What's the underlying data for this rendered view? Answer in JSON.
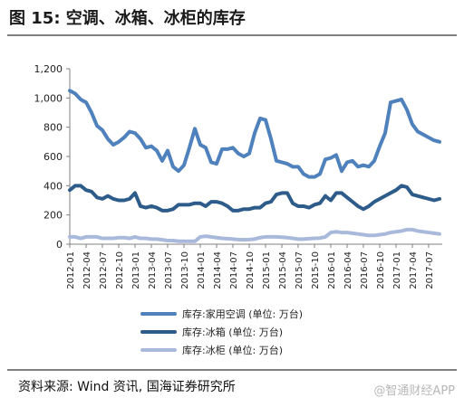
{
  "title": "图 15:  空调、冰箱、冰柜的库存",
  "source": "资料来源:  Wind 资讯, 国海证券研究所",
  "watermark": "@智通财经APP",
  "colors": {
    "series_ac": "#4f81bd",
    "series_fridge": "#2e5c8a",
    "series_freezer": "#a9b9dc",
    "axis": "#808080",
    "rule": "#7f7f7f"
  },
  "chart_data": {
    "type": "line",
    "ylim": [
      0,
      1200
    ],
    "yticks": [
      0,
      200,
      400,
      600,
      800,
      1000,
      1200
    ],
    "ytick_labels": [
      "0",
      "200",
      "400",
      "600",
      "800",
      "1,000",
      "1,200"
    ],
    "x": [
      "2012-01",
      "2012-02",
      "2012-03",
      "2012-04",
      "2012-05",
      "2012-06",
      "2012-07",
      "2012-08",
      "2012-09",
      "2012-10",
      "2012-11",
      "2012-12",
      "2013-01",
      "2013-02",
      "2013-03",
      "2013-04",
      "2013-05",
      "2013-06",
      "2013-07",
      "2013-08",
      "2013-09",
      "2013-10",
      "2013-11",
      "2013-12",
      "2014-01",
      "2014-02",
      "2014-03",
      "2014-04",
      "2014-05",
      "2014-06",
      "2014-07",
      "2014-08",
      "2014-09",
      "2014-10",
      "2014-11",
      "2014-12",
      "2015-01",
      "2015-02",
      "2015-03",
      "2015-04",
      "2015-05",
      "2015-06",
      "2015-07",
      "2015-08",
      "2015-09",
      "2015-10",
      "2015-11",
      "2015-12",
      "2016-01",
      "2016-02",
      "2016-03",
      "2016-04",
      "2016-05",
      "2016-06",
      "2016-07",
      "2016-08",
      "2016-09",
      "2016-10",
      "2016-11",
      "2016-12",
      "2017-01",
      "2017-02",
      "2017-03",
      "2017-04",
      "2017-05",
      "2017-06",
      "2017-07",
      "2017-08",
      "2017-09"
    ],
    "xtick_labels": [
      "2012-01",
      "2012-04",
      "2012-07",
      "2012-10",
      "2013-01",
      "2013-04",
      "2013-07",
      "2013-10",
      "2014-01",
      "2014-04",
      "2014-07",
      "2014-10",
      "2015-01",
      "2015-04",
      "2015-07",
      "2015-10",
      "2016-01",
      "2016-04",
      "2016-07",
      "2016-10",
      "2017-01",
      "2017-04",
      "2017-07"
    ],
    "legend_position": "bottom",
    "grid": false,
    "series": [
      {
        "name": "库存:家用空调 (单位: 万台)",
        "values": [
          1050,
          1030,
          990,
          970,
          900,
          810,
          780,
          720,
          680,
          700,
          730,
          770,
          760,
          720,
          660,
          670,
          640,
          570,
          640,
          530,
          500,
          540,
          660,
          790,
          680,
          660,
          560,
          550,
          650,
          650,
          660,
          620,
          600,
          620,
          760,
          860,
          850,
          720,
          570,
          560,
          550,
          530,
          530,
          480,
          460,
          460,
          480,
          580,
          590,
          610,
          500,
          560,
          570,
          530,
          540,
          530,
          570,
          670,
          760,
          970,
          980,
          990,
          920,
          820,
          770,
          750,
          730,
          710,
          700
        ]
      },
      {
        "name": "库存:冰箱 (单位: 万台)",
        "values": [
          370,
          400,
          400,
          370,
          360,
          320,
          310,
          330,
          310,
          300,
          300,
          310,
          350,
          260,
          250,
          260,
          250,
          230,
          230,
          240,
          270,
          270,
          270,
          280,
          280,
          260,
          290,
          290,
          280,
          260,
          230,
          230,
          240,
          240,
          250,
          250,
          280,
          290,
          340,
          350,
          350,
          280,
          260,
          260,
          250,
          270,
          280,
          330,
          300,
          350,
          350,
          320,
          290,
          260,
          240,
          260,
          290,
          310,
          330,
          350,
          370,
          400,
          390,
          340,
          330,
          320,
          310,
          300,
          310
        ]
      },
      {
        "name": "库存:冰柜 (单位: 万台)",
        "values": [
          50,
          50,
          40,
          50,
          50,
          50,
          40,
          40,
          40,
          45,
          45,
          40,
          50,
          40,
          40,
          35,
          35,
          30,
          25,
          25,
          20,
          20,
          20,
          20,
          50,
          55,
          50,
          45,
          40,
          38,
          35,
          32,
          30,
          32,
          35,
          45,
          50,
          50,
          50,
          48,
          45,
          40,
          35,
          35,
          38,
          40,
          42,
          50,
          80,
          85,
          80,
          80,
          75,
          70,
          65,
          60,
          60,
          65,
          70,
          80,
          85,
          90,
          100,
          100,
          90,
          85,
          80,
          75,
          70
        ]
      }
    ]
  }
}
